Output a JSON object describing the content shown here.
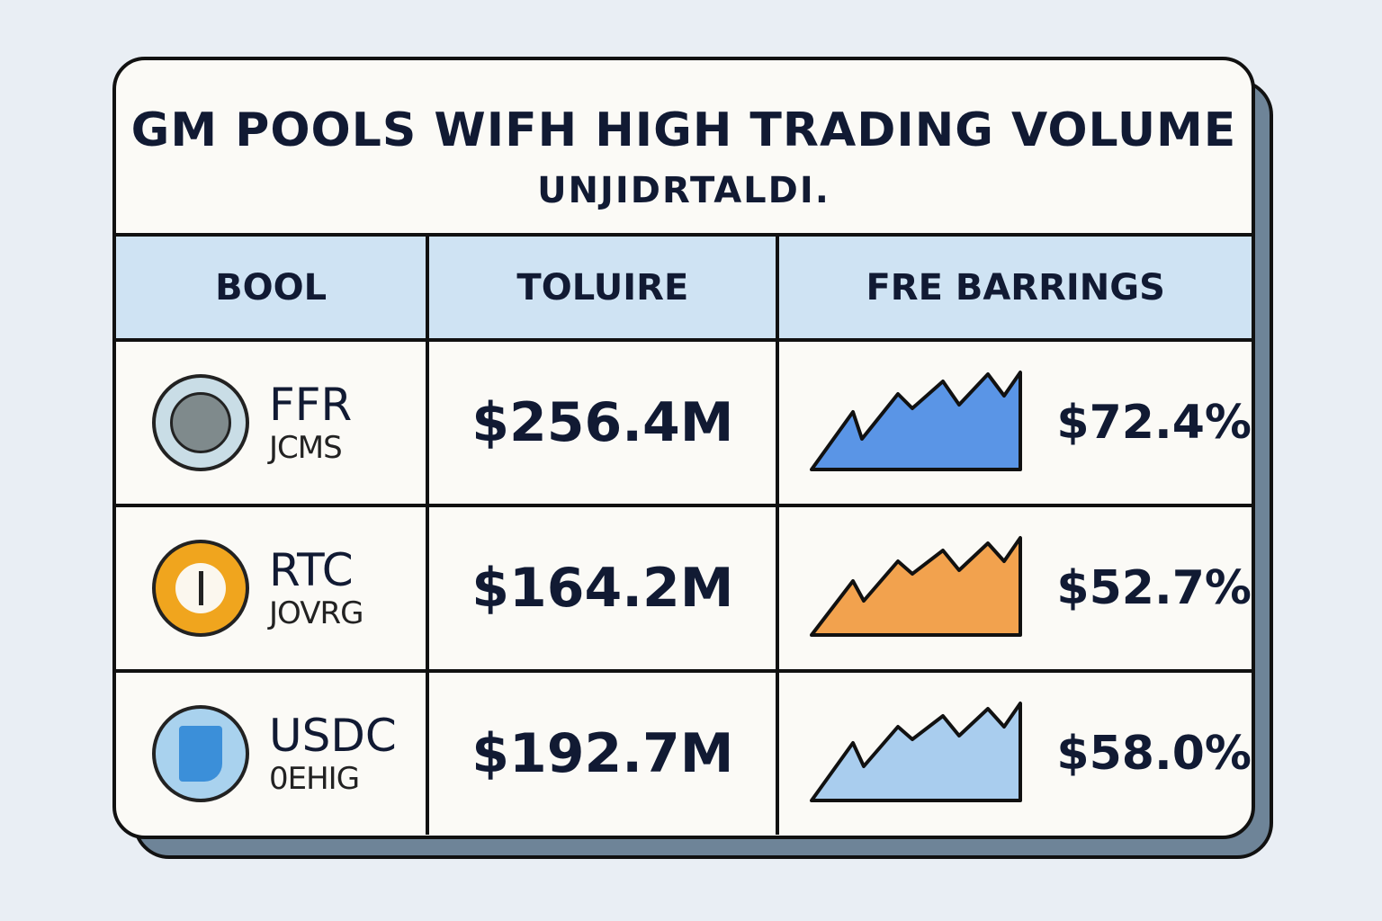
{
  "title": "GM POOLS WIFH HIGH TRADING VOLUME",
  "subtitle": "UNJIDRTALDI.",
  "columns": [
    "BOOL",
    "TOLUIRE",
    "FRE BARRINGS"
  ],
  "rows": [
    {
      "symbol": "FFR",
      "sub": "JCMS",
      "icon": "coin-icon",
      "coin_color": "#c9dde6",
      "volume": "$256.4M",
      "earnings": "$72.4%",
      "spark_color": "#5a95e6"
    },
    {
      "symbol": "RTC",
      "sub": "JOVRG",
      "icon": "coin-icon",
      "coin_color": "#f0a51e",
      "volume": "$164.2M",
      "earnings": "$52.7%",
      "spark_color": "#f2a24e"
    },
    {
      "symbol": "USDC",
      "sub": "0EHIG",
      "icon": "coin-icon",
      "coin_color": "#a9d2ee",
      "volume": "$192.7M",
      "earnings": "$58.0%",
      "spark_color": "#a9cdee"
    }
  ]
}
